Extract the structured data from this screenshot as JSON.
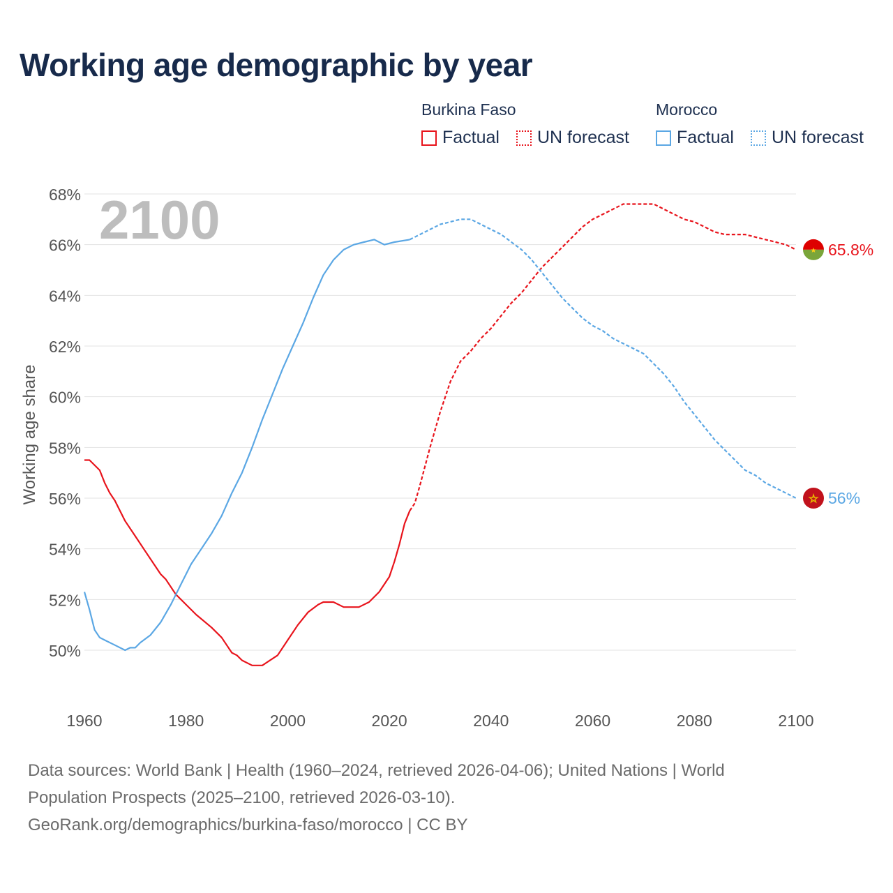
{
  "title": "Working age demographic by year",
  "legend": {
    "groups": [
      {
        "country": "Burkina Faso",
        "color": "#e8141c",
        "items": [
          {
            "label": "Factual",
            "style": "solid"
          },
          {
            "label": "UN forecast",
            "style": "dotted"
          }
        ]
      },
      {
        "country": "Morocco",
        "color": "#5ba7e4",
        "items": [
          {
            "label": "Factual",
            "style": "solid"
          },
          {
            "label": "UN forecast",
            "style": "dotted"
          }
        ]
      }
    ]
  },
  "year_overlay": "2100",
  "source": {
    "line1": "Data sources: World Bank | Health (1960–2024, retrieved 2026-04-06); United Nations | World",
    "line2": "Population Prospects (2025–2100, retrieved 2026-03-10).",
    "line3": "GeoRank.org/demographics/burkina-faso/morocco | CC BY"
  },
  "chart_data": {
    "type": "line",
    "title": "Working age demographic by year",
    "xlabel": "",
    "ylabel": "Working age share",
    "xlim": [
      1960,
      2100
    ],
    "ylim": [
      48,
      68
    ],
    "y_ticks": [
      50,
      52,
      54,
      56,
      58,
      60,
      62,
      64,
      66,
      68
    ],
    "y_tick_labels": [
      "50%",
      "52%",
      "54%",
      "56%",
      "58%",
      "60%",
      "62%",
      "64%",
      "66%",
      "68%"
    ],
    "x_ticks": [
      1960,
      1980,
      2000,
      2020,
      2040,
      2060,
      2080,
      2100
    ],
    "x_tick_labels": [
      "1960",
      "1980",
      "2000",
      "2020",
      "2040",
      "2060",
      "2080",
      "2100"
    ],
    "grid": true,
    "factual_end_year": 2024,
    "series": [
      {
        "name": "Burkina Faso",
        "color": "#e8141c",
        "end_label": "65.8%",
        "end_value": 65.8,
        "points": [
          [
            1960,
            57.5
          ],
          [
            1961,
            57.5
          ],
          [
            1963,
            57.1
          ],
          [
            1964,
            56.6
          ],
          [
            1965,
            56.2
          ],
          [
            1966,
            55.9
          ],
          [
            1968,
            55.1
          ],
          [
            1970,
            54.5
          ],
          [
            1972,
            53.9
          ],
          [
            1974,
            53.3
          ],
          [
            1975,
            53.0
          ],
          [
            1976,
            52.8
          ],
          [
            1978,
            52.2
          ],
          [
            1980,
            51.8
          ],
          [
            1982,
            51.4
          ],
          [
            1985,
            50.9
          ],
          [
            1987,
            50.5
          ],
          [
            1988,
            50.2
          ],
          [
            1989,
            49.9
          ],
          [
            1990,
            49.8
          ],
          [
            1991,
            49.6
          ],
          [
            1993,
            49.4
          ],
          [
            1995,
            49.4
          ],
          [
            1998,
            49.8
          ],
          [
            2000,
            50.4
          ],
          [
            2002,
            51.0
          ],
          [
            2004,
            51.5
          ],
          [
            2006,
            51.8
          ],
          [
            2007,
            51.9
          ],
          [
            2009,
            51.9
          ],
          [
            2011,
            51.7
          ],
          [
            2014,
            51.7
          ],
          [
            2016,
            51.9
          ],
          [
            2018,
            52.3
          ],
          [
            2020,
            52.9
          ],
          [
            2021,
            53.5
          ],
          [
            2022,
            54.2
          ],
          [
            2023,
            55.0
          ],
          [
            2024,
            55.5
          ],
          [
            2025,
            55.8
          ],
          [
            2026,
            56.5
          ],
          [
            2028,
            58.0
          ],
          [
            2030,
            59.4
          ],
          [
            2032,
            60.6
          ],
          [
            2034,
            61.4
          ],
          [
            2036,
            61.8
          ],
          [
            2038,
            62.3
          ],
          [
            2040,
            62.7
          ],
          [
            2042,
            63.2
          ],
          [
            2044,
            63.7
          ],
          [
            2046,
            64.1
          ],
          [
            2048,
            64.6
          ],
          [
            2050,
            65.1
          ],
          [
            2052,
            65.5
          ],
          [
            2054,
            65.9
          ],
          [
            2056,
            66.3
          ],
          [
            2058,
            66.7
          ],
          [
            2060,
            67.0
          ],
          [
            2062,
            67.2
          ],
          [
            2064,
            67.4
          ],
          [
            2066,
            67.6
          ],
          [
            2068,
            67.6
          ],
          [
            2070,
            67.6
          ],
          [
            2072,
            67.6
          ],
          [
            2074,
            67.4
          ],
          [
            2076,
            67.2
          ],
          [
            2078,
            67.0
          ],
          [
            2080,
            66.9
          ],
          [
            2082,
            66.7
          ],
          [
            2084,
            66.5
          ],
          [
            2086,
            66.4
          ],
          [
            2088,
            66.4
          ],
          [
            2090,
            66.4
          ],
          [
            2092,
            66.3
          ],
          [
            2094,
            66.2
          ],
          [
            2096,
            66.1
          ],
          [
            2098,
            66.0
          ],
          [
            2100,
            65.8
          ]
        ]
      },
      {
        "name": "Morocco",
        "color": "#5ba7e4",
        "end_label": "56%",
        "end_value": 56.0,
        "points": [
          [
            1960,
            52.3
          ],
          [
            1961,
            51.6
          ],
          [
            1962,
            50.8
          ],
          [
            1963,
            50.5
          ],
          [
            1964,
            50.4
          ],
          [
            1966,
            50.2
          ],
          [
            1968,
            50.0
          ],
          [
            1969,
            50.1
          ],
          [
            1970,
            50.1
          ],
          [
            1971,
            50.3
          ],
          [
            1973,
            50.6
          ],
          [
            1975,
            51.1
          ],
          [
            1977,
            51.8
          ],
          [
            1979,
            52.6
          ],
          [
            1981,
            53.4
          ],
          [
            1983,
            54.0
          ],
          [
            1985,
            54.6
          ],
          [
            1987,
            55.3
          ],
          [
            1989,
            56.2
          ],
          [
            1991,
            57.0
          ],
          [
            1993,
            58.0
          ],
          [
            1995,
            59.1
          ],
          [
            1997,
            60.1
          ],
          [
            1999,
            61.1
          ],
          [
            2001,
            62.0
          ],
          [
            2003,
            62.9
          ],
          [
            2005,
            63.9
          ],
          [
            2007,
            64.8
          ],
          [
            2009,
            65.4
          ],
          [
            2011,
            65.8
          ],
          [
            2013,
            66.0
          ],
          [
            2015,
            66.1
          ],
          [
            2017,
            66.2
          ],
          [
            2019,
            66.0
          ],
          [
            2021,
            66.1
          ],
          [
            2024,
            66.2
          ],
          [
            2026,
            66.4
          ],
          [
            2028,
            66.6
          ],
          [
            2030,
            66.8
          ],
          [
            2032,
            66.9
          ],
          [
            2034,
            67.0
          ],
          [
            2036,
            67.0
          ],
          [
            2038,
            66.8
          ],
          [
            2040,
            66.6
          ],
          [
            2042,
            66.4
          ],
          [
            2044,
            66.1
          ],
          [
            2046,
            65.8
          ],
          [
            2048,
            65.4
          ],
          [
            2050,
            64.9
          ],
          [
            2052,
            64.4
          ],
          [
            2054,
            63.9
          ],
          [
            2056,
            63.5
          ],
          [
            2058,
            63.1
          ],
          [
            2060,
            62.8
          ],
          [
            2062,
            62.6
          ],
          [
            2064,
            62.3
          ],
          [
            2066,
            62.1
          ],
          [
            2068,
            61.9
          ],
          [
            2070,
            61.7
          ],
          [
            2072,
            61.3
          ],
          [
            2074,
            60.9
          ],
          [
            2076,
            60.4
          ],
          [
            2078,
            59.8
          ],
          [
            2080,
            59.3
          ],
          [
            2082,
            58.8
          ],
          [
            2084,
            58.3
          ],
          [
            2086,
            57.9
          ],
          [
            2088,
            57.5
          ],
          [
            2090,
            57.1
          ],
          [
            2092,
            56.9
          ],
          [
            2094,
            56.6
          ],
          [
            2096,
            56.4
          ],
          [
            2098,
            56.2
          ],
          [
            2100,
            56.0
          ]
        ]
      }
    ]
  }
}
